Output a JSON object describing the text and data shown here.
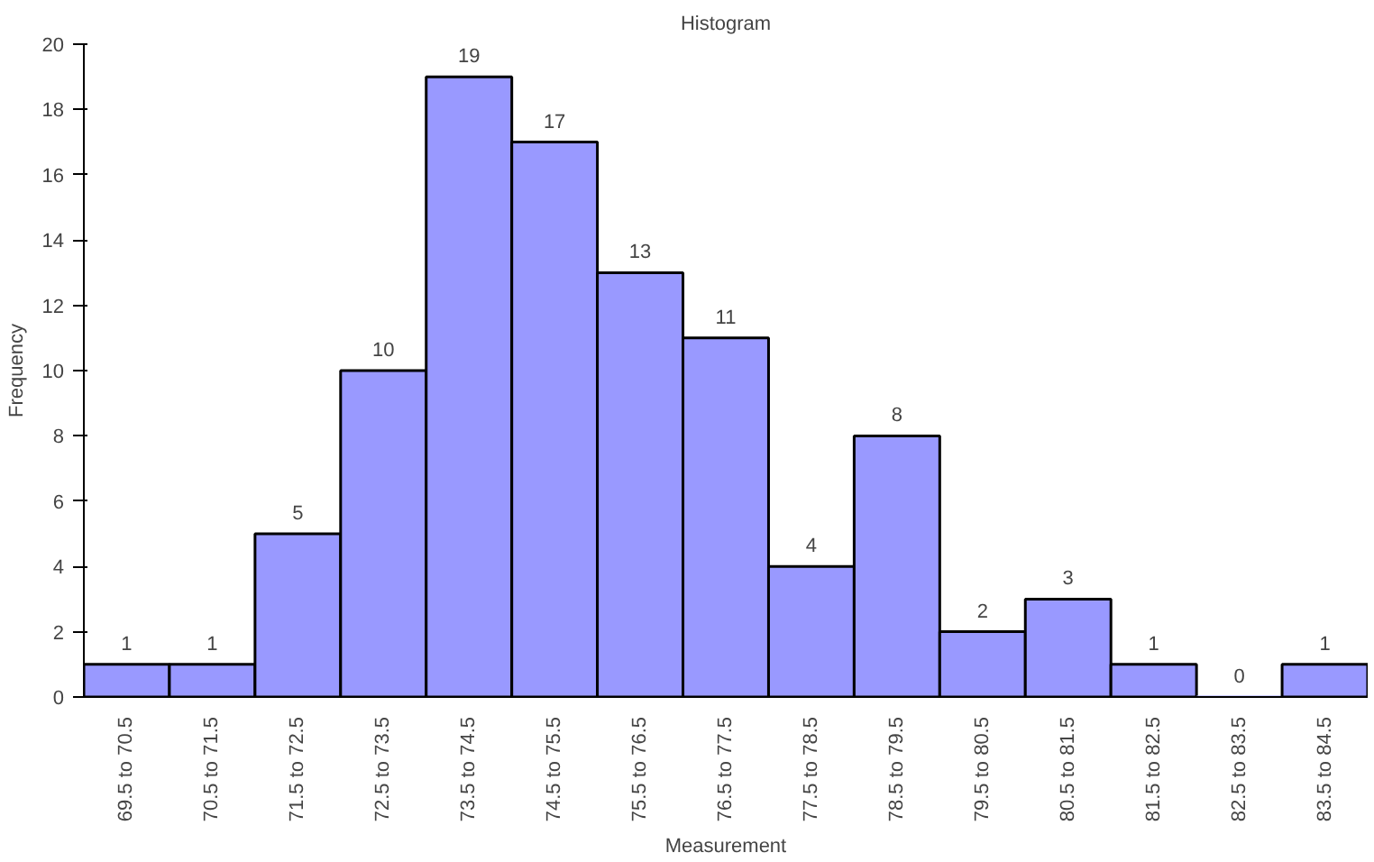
{
  "chart_data": {
    "type": "bar",
    "title": "Histogram",
    "xlabel": "Measurement",
    "ylabel": "Frequency",
    "categories": [
      "69.5 to 70.5",
      "70.5 to 71.5",
      "71.5 to 72.5",
      "72.5 to 73.5",
      "73.5 to 74.5",
      "74.5 to 75.5",
      "75.5 to 76.5",
      "76.5 to 77.5",
      "77.5 to 78.5",
      "78.5 to 79.5",
      "79.5 to 80.5",
      "80.5 to 81.5",
      "81.5 to 82.5",
      "82.5 to 83.5",
      "83.5 to 84.5"
    ],
    "values": [
      1,
      1,
      5,
      10,
      19,
      17,
      13,
      11,
      4,
      8,
      2,
      3,
      1,
      0,
      1
    ],
    "color": "#9999ff",
    "ylim": [
      0,
      20
    ],
    "yticks": [
      0,
      2,
      4,
      6,
      8,
      10,
      12,
      14,
      16,
      18,
      20
    ],
    "data_labels": true,
    "grid": false
  }
}
